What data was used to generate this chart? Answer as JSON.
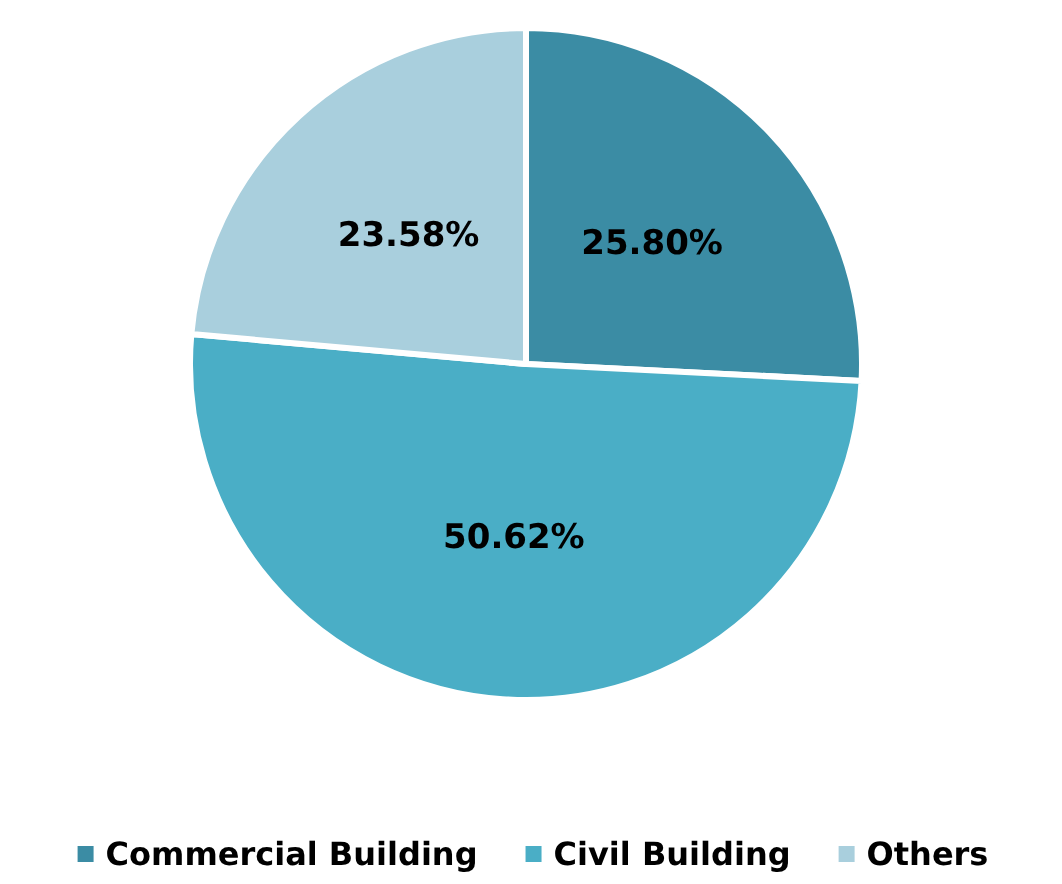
{
  "chart_data": {
    "type": "pie",
    "categories": [
      "Commercial Building",
      "Civil Building",
      "Others"
    ],
    "values": [
      25.8,
      50.62,
      23.58
    ],
    "colors": [
      "#3b8ca4",
      "#4aaec6",
      "#a9cfdd"
    ],
    "value_labels": [
      "25.80%",
      "50.62%",
      "23.58%"
    ],
    "legend": "bottom"
  }
}
